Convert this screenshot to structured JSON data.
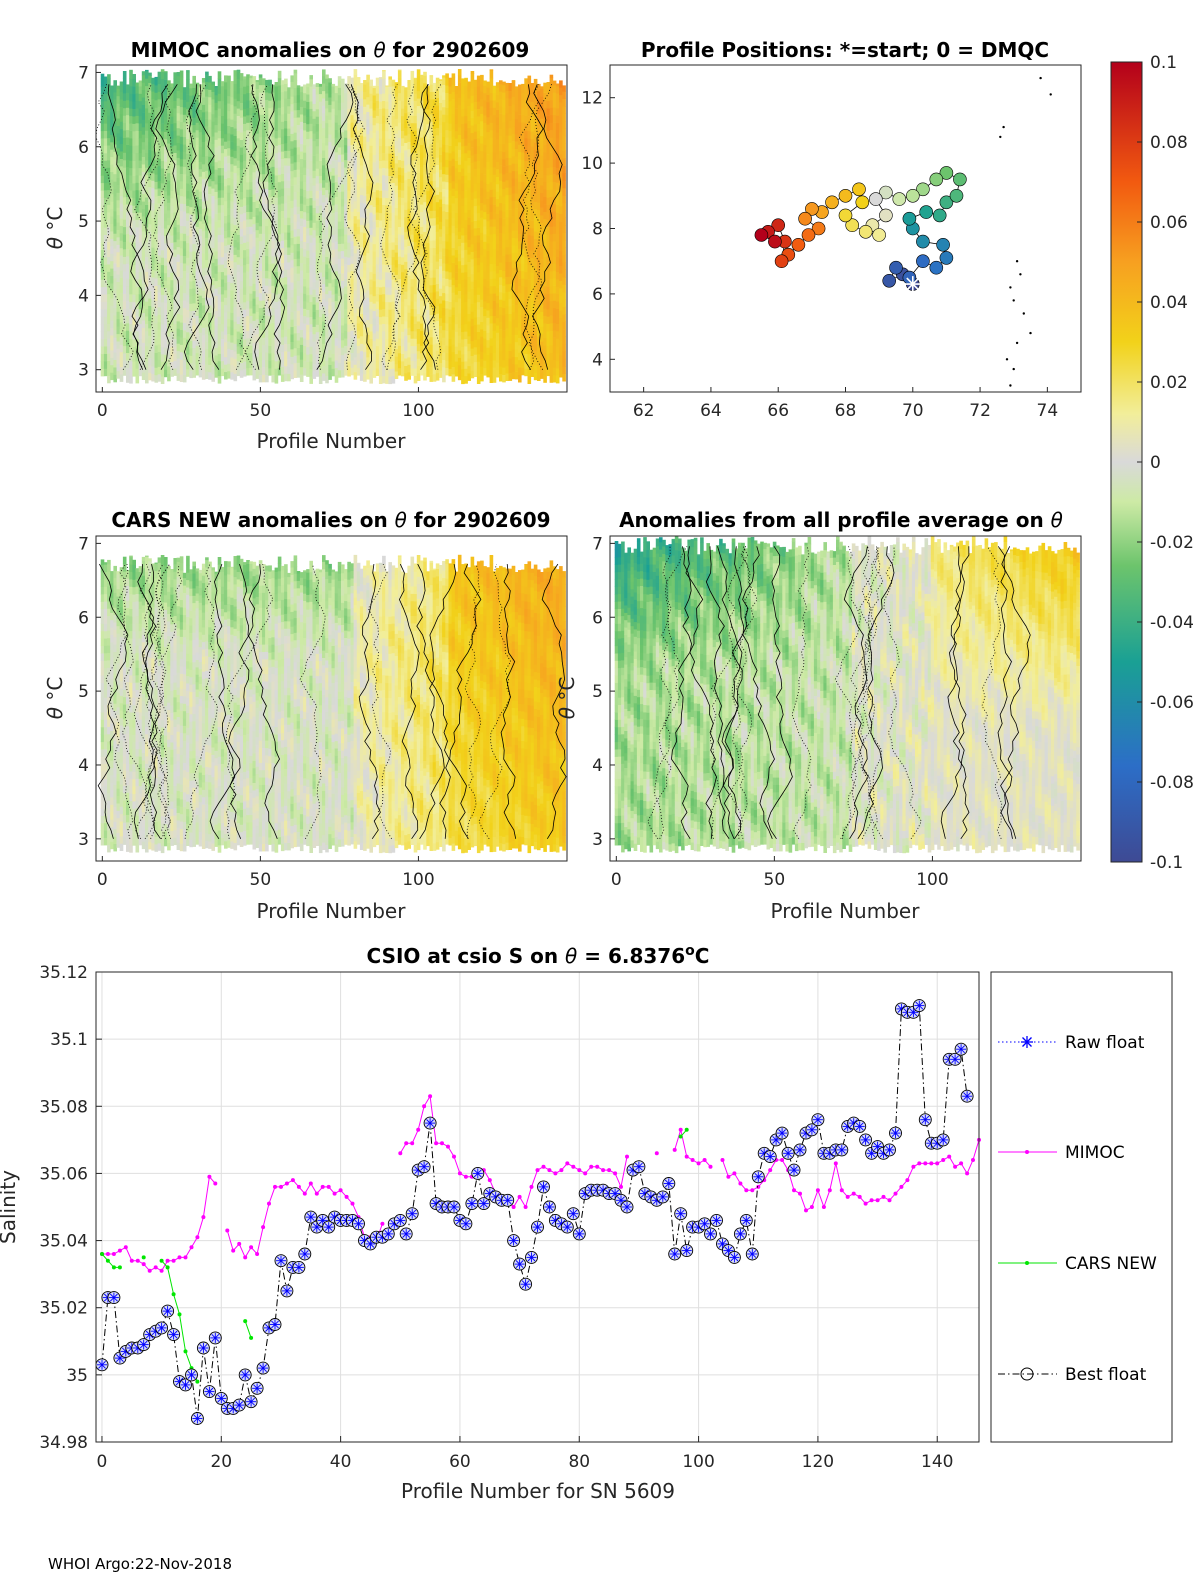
{
  "footer": "WHOI Argo:22-Nov-2018",
  "colorbar": {
    "ticks": [
      "0.1",
      "0.08",
      "0.06",
      "0.04",
      "0.02",
      "0",
      "-0.02",
      "-0.04",
      "-0.06",
      "-0.08",
      "-0.1"
    ],
    "range": [
      -0.1,
      0.1
    ]
  },
  "chart_data": [
    {
      "id": "mimoc",
      "type": "heatmap",
      "title_prefix": "MIMOC anomalies on ",
      "title_symbol": "θ",
      "title_suffix": "  for 2902609",
      "xlabel": "Profile Number",
      "ylabel": "θ °C",
      "xlim": [
        -2,
        147
      ],
      "ylim": [
        2.7,
        7.1
      ],
      "xticks": [
        "0",
        "50",
        "100"
      ],
      "yticks": [
        "3",
        "4",
        "5",
        "6",
        "7"
      ]
    },
    {
      "id": "positions",
      "type": "scatter",
      "title": "Profile Positions: *=start; 0 = DMQC",
      "xlim": [
        61,
        75
      ],
      "ylim": [
        3,
        13
      ],
      "xticks": [
        "62",
        "64",
        "66",
        "68",
        "70",
        "72",
        "74"
      ],
      "yticks": [
        "4",
        "6",
        "8",
        "10",
        "12"
      ],
      "track": [
        [
          70.0,
          6.3
        ],
        [
          69.7,
          6.6
        ],
        [
          69.3,
          6.4
        ],
        [
          69.5,
          6.8
        ],
        [
          69.9,
          6.5
        ],
        [
          70.3,
          7.0
        ],
        [
          70.7,
          6.8
        ],
        [
          71.0,
          7.1
        ],
        [
          70.9,
          7.5
        ],
        [
          70.3,
          7.6
        ],
        [
          70.0,
          8.0
        ],
        [
          69.9,
          8.3
        ],
        [
          70.4,
          8.5
        ],
        [
          70.8,
          8.4
        ],
        [
          71.0,
          8.8
        ],
        [
          71.3,
          9.0
        ],
        [
          71.4,
          9.5
        ],
        [
          71.0,
          9.7
        ],
        [
          70.7,
          9.5
        ],
        [
          70.3,
          9.2
        ],
        [
          70.0,
          9.0
        ],
        [
          69.6,
          8.9
        ],
        [
          69.2,
          9.1
        ],
        [
          68.9,
          8.9
        ],
        [
          69.2,
          8.4
        ],
        [
          68.8,
          8.1
        ],
        [
          69.0,
          7.8
        ],
        [
          68.6,
          7.9
        ],
        [
          68.2,
          8.1
        ],
        [
          68.0,
          8.4
        ],
        [
          68.5,
          8.8
        ],
        [
          68.4,
          9.2
        ],
        [
          68.0,
          9.0
        ],
        [
          67.6,
          8.8
        ],
        [
          67.3,
          8.5
        ],
        [
          67.0,
          8.6
        ],
        [
          66.8,
          8.3
        ],
        [
          67.2,
          8.0
        ],
        [
          66.9,
          7.8
        ],
        [
          66.6,
          7.5
        ],
        [
          66.3,
          7.2
        ],
        [
          66.1,
          7.0
        ],
        [
          66.2,
          7.6
        ],
        [
          66.0,
          8.1
        ],
        [
          65.7,
          7.9
        ],
        [
          65.9,
          7.6
        ],
        [
          65.5,
          7.8
        ]
      ],
      "coast": [
        [
          72.9,
          3.2
        ],
        [
          73.0,
          3.7
        ],
        [
          72.8,
          4.0
        ],
        [
          73.1,
          4.5
        ],
        [
          73.5,
          4.8
        ],
        [
          73.3,
          5.4
        ],
        [
          73.0,
          5.8
        ],
        [
          72.9,
          6.2
        ],
        [
          73.2,
          6.6
        ],
        [
          73.1,
          7.0
        ],
        [
          72.6,
          10.8
        ],
        [
          72.7,
          11.1
        ],
        [
          73.8,
          12.6
        ],
        [
          74.1,
          12.1
        ]
      ]
    },
    {
      "id": "cars",
      "type": "heatmap",
      "title_prefix": "CARS NEW anomalies on ",
      "title_symbol": "θ",
      "title_suffix": " for 2902609",
      "xlabel": "Profile Number",
      "ylabel": "θ °C",
      "xlim": [
        -2,
        147
      ],
      "ylim": [
        2.7,
        7.1
      ],
      "xticks": [
        "0",
        "50",
        "100"
      ],
      "yticks": [
        "3",
        "4",
        "5",
        "6",
        "7"
      ]
    },
    {
      "id": "allavg",
      "type": "heatmap",
      "title_prefix": "Anomalies from all profile average on ",
      "title_symbol": "θ",
      "title_suffix": "",
      "xlabel": "Profile Number",
      "ylabel": "θ °C",
      "xlim": [
        -2,
        147
      ],
      "ylim": [
        2.7,
        7.1
      ],
      "xticks": [
        "0",
        "50",
        "100"
      ],
      "yticks": [
        "3",
        "4",
        "5",
        "6",
        "7"
      ]
    },
    {
      "id": "salinity",
      "type": "line",
      "title_prefix": "CSIO at csio S on ",
      "title_symbol": "θ",
      "title_mid": " = 6.8376",
      "title_sup": "o",
      "title_end": "C",
      "xlabel": "Profile Number for SN 5609",
      "ylabel": "Salinity",
      "xlim": [
        -1,
        147
      ],
      "ylim": [
        34.98,
        35.12
      ],
      "xticks": [
        "0",
        "20",
        "40",
        "60",
        "80",
        "100",
        "120",
        "140"
      ],
      "yticks": [
        "34.98",
        "35",
        "35.02",
        "35.04",
        "35.06",
        "35.08",
        "35.1",
        "35.12"
      ],
      "legend": [
        "Raw float",
        "MIMOC",
        "CARS NEW",
        "Best float"
      ],
      "series": [
        {
          "name": "Raw float",
          "color": "#0000ff"
        },
        {
          "name": "MIMOC",
          "color": "#ff00ff",
          "x": [
            0,
            1,
            2,
            3,
            4,
            5,
            6,
            7,
            8,
            9,
            10,
            11,
            12,
            13,
            14,
            15,
            16,
            17,
            18,
            19,
            20,
            21,
            22,
            23,
            24,
            25,
            26,
            27,
            28,
            29,
            30,
            31,
            32,
            33,
            34,
            35,
            36,
            37,
            38,
            39,
            40,
            41,
            42,
            43,
            44,
            45,
            46,
            47,
            48,
            49,
            50,
            51,
            52,
            53,
            54,
            55,
            56,
            57,
            58,
            59,
            60,
            61,
            62,
            63,
            64,
            65,
            66,
            67,
            68,
            69,
            70,
            71,
            72,
            73,
            74,
            75,
            76,
            77,
            78,
            79,
            80,
            81,
            82,
            83,
            84,
            85,
            86,
            87,
            88,
            89,
            90,
            91,
            92,
            93,
            94,
            95,
            96,
            97,
            98,
            99,
            100,
            101,
            102,
            103,
            104,
            105,
            106,
            107,
            108,
            109,
            110,
            111,
            112,
            113,
            114,
            115,
            116,
            117,
            118,
            119,
            120,
            121,
            122,
            123,
            124,
            125,
            126,
            127,
            128,
            129,
            130,
            131,
            132,
            133,
            134,
            135,
            136,
            137,
            138,
            139,
            140,
            141,
            142,
            143,
            144,
            145,
            146,
            147
          ],
          "values": [
            35.036,
            35.036,
            35.036,
            35.037,
            35.038,
            35.034,
            35.034,
            35.033,
            35.031,
            35.032,
            35.031,
            35.034,
            35.034,
            35.035,
            35.035,
            35.038,
            35.041,
            35.047,
            35.059,
            35.057,
            null,
            35.043,
            35.037,
            35.039,
            35.035,
            35.038,
            35.036,
            35.044,
            35.051,
            35.056,
            35.056,
            35.057,
            35.058,
            35.056,
            35.054,
            35.057,
            35.054,
            35.056,
            35.056,
            35.054,
            35.055,
            35.053,
            35.051,
            35.047,
            35.041,
            35.041,
            35.04,
            35.045,
            null,
            null,
            35.066,
            35.069,
            35.069,
            35.073,
            35.08,
            35.083,
            35.069,
            35.069,
            35.068,
            35.065,
            35.06,
            35.059,
            35.059,
            35.059,
            35.061,
            35.058,
            35.054,
            35.052,
            35.052,
            35.05,
            35.053,
            35.05,
            35.056,
            35.061,
            35.062,
            35.061,
            35.06,
            35.061,
            35.063,
            35.062,
            35.061,
            35.06,
            35.062,
            35.062,
            35.061,
            35.061,
            35.06,
            35.056,
            35.065,
            null,
            null,
            null,
            null,
            35.066,
            null,
            null,
            35.067,
            35.073,
            35.065,
            35.064,
            35.063,
            35.064,
            35.062,
            null,
            35.064,
            35.059,
            35.06,
            35.057,
            35.055,
            35.055,
            35.056,
            35.058,
            35.061,
            35.064,
            35.064,
            35.061,
            35.055,
            35.054,
            35.049,
            35.05,
            35.055,
            35.05,
            35.055,
            35.063,
            35.055,
            35.053,
            35.054,
            35.053,
            35.051,
            35.052,
            35.052,
            35.053,
            35.052,
            35.054,
            35.056,
            35.058,
            35.062,
            35.063,
            35.063,
            35.063,
            35.063,
            35.064,
            35.065,
            35.062,
            35.063,
            35.06,
            35.064,
            35.07
          ]
        },
        {
          "name": "CARS NEW",
          "color": "#00e600",
          "segments": [
            [
              [
                0,
                35.036
              ],
              [
                1,
                35.034
              ],
              [
                2,
                35.032
              ],
              [
                3,
                35.032
              ]
            ],
            [
              [
                7,
                35.035
              ]
            ],
            [
              [
                10,
                35.034
              ],
              [
                11,
                35.032
              ],
              [
                12,
                35.024
              ],
              [
                13,
                35.018
              ],
              [
                14,
                35.007
              ],
              [
                15,
                35.002
              ],
              [
                16,
                34.998
              ]
            ],
            [
              [
                24,
                35.016
              ],
              [
                25,
                35.011
              ]
            ],
            [
              [
                97,
                35.071
              ],
              [
                98,
                35.073
              ]
            ]
          ]
        },
        {
          "name": "Best float",
          "color": "#000000",
          "values": [
            35.003,
            35.023,
            35.023,
            35.005,
            35.007,
            35.008,
            35.008,
            35.009,
            35.012,
            35.013,
            35.014,
            35.019,
            35.012,
            34.998,
            34.997,
            35.0,
            34.987,
            35.008,
            34.995,
            35.011,
            34.993,
            34.99,
            34.99,
            34.991,
            35.0,
            34.992,
            34.996,
            35.002,
            35.014,
            35.015,
            35.034,
            35.025,
            35.032,
            35.032,
            35.036,
            35.047,
            35.044,
            35.046,
            35.044,
            35.047,
            35.046,
            35.046,
            35.046,
            35.045,
            35.04,
            35.039,
            35.041,
            35.041,
            35.042,
            35.045,
            35.046,
            35.042,
            35.048,
            35.061,
            35.062,
            35.075,
            35.051,
            35.05,
            35.05,
            35.05,
            35.046,
            35.045,
            35.051,
            35.06,
            35.051,
            35.054,
            35.053,
            35.052,
            35.052,
            35.04,
            35.033,
            35.027,
            35.035,
            35.044,
            35.056,
            35.05,
            35.046,
            35.045,
            35.044,
            35.048,
            35.042,
            35.054,
            35.055,
            35.055,
            35.055,
            35.054,
            35.054,
            35.052,
            35.05,
            35.061,
            35.062,
            35.054,
            35.053,
            35.052,
            35.053,
            35.057,
            35.036,
            35.048,
            35.037,
            35.044,
            35.044,
            35.045,
            35.042,
            35.046,
            35.039,
            35.037,
            35.035,
            35.042,
            35.046,
            35.036,
            35.059,
            35.066,
            35.065,
            35.07,
            35.072,
            35.066,
            35.061,
            35.067,
            35.072,
            35.073,
            35.076,
            35.066,
            35.066,
            35.067,
            35.067,
            35.074,
            35.075,
            35.074,
            35.07,
            35.066,
            35.068,
            35.066,
            35.067,
            35.072,
            35.109,
            35.108,
            35.108,
            35.11,
            35.076,
            35.069,
            35.069,
            35.07,
            35.094,
            35.094,
            35.097,
            35.083
          ]
        }
      ]
    }
  ]
}
